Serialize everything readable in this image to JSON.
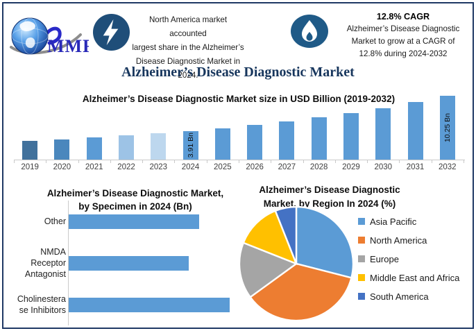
{
  "header": {
    "logo_text": "MMR",
    "highlight1": {
      "lines": [
        "North America market accounted",
        "largest share in the Alzheimer’s",
        "Disease Diagnostic Market in 2024."
      ]
    },
    "highlight2": {
      "title": "12.8% CAGR",
      "lines": [
        "Alzheimer’s Disease Diagnostic",
        "Market to grow at a CAGR of",
        "12.8% during 2024-2032"
      ]
    }
  },
  "main_title": "Alzheimer’s Disease Diagnostic Market",
  "colors": {
    "frame": "#1f3864",
    "title_navy": "#17365d",
    "primary_bar": "#5b9bd5",
    "bolt_circle": "#1f4e79",
    "flame_ellipse": "#1f5a87"
  },
  "chart_data": [
    {
      "id": "market_size",
      "type": "bar",
      "title": "Alzheimer’s Disease Diagnostic Market size in USD Billion (2019-2032)",
      "unit": "USD Billion",
      "categories": [
        "2019",
        "2020",
        "2021",
        "2022",
        "2023",
        "2024",
        "2025",
        "2026",
        "2027",
        "2028",
        "2029",
        "2030",
        "2031",
        "2032"
      ],
      "values": [
        2.14,
        2.41,
        2.72,
        3.07,
        3.47,
        3.91,
        4.41,
        4.97,
        5.61,
        6.33,
        7.14,
        8.05,
        9.08,
        10.25
      ],
      "data_labels": {
        "2024": "3.91 Bn",
        "2032": "10.25 Bn"
      },
      "bar_colors": [
        "#41719c",
        "#4a87bd",
        "#5b9bd5",
        "#9dc3e6",
        "#bdd7ee",
        "#5b9bd5",
        "#5b9bd5",
        "#5b9bd5",
        "#5b9bd5",
        "#5b9bd5",
        "#5b9bd5",
        "#5b9bd5",
        "#5b9bd5",
        "#5b9bd5"
      ],
      "grid": false,
      "legend": false
    },
    {
      "id": "by_specimen",
      "type": "bar",
      "orientation": "horizontal",
      "title": "Alzheimer’s Disease Diagnostic Market, by Specimen in 2024 (Bn)",
      "title_lines": [
        "Alzheimer’s Disease Diagnostic Market,",
        "by Specimen in 2024 (Bn)"
      ],
      "categories": [
        "Other",
        "NMDA Receptor Antagonist",
        "Cholinesterase Inhibitors"
      ],
      "categories_wrapped": [
        [
          "Other"
        ],
        [
          "NMDA",
          "Receptor",
          "Antagonist"
        ],
        [
          "Cholinestera",
          "se Inhibitors"
        ]
      ],
      "values": [
        1.24,
        1.14,
        1.53
      ],
      "unit": "USD Billion",
      "bar_color": "#5b9bd5",
      "grid": false,
      "legend": false
    },
    {
      "id": "by_region",
      "type": "pie",
      "title": "Alzheimer’s Disease Diagnostic Market, by Region In 2024 (%)",
      "title_lines": [
        "Alzheimer’s Disease Diagnostic",
        "Market, by Region In 2024 (%)"
      ],
      "labels": [
        "Asia Pacific",
        "North America",
        "Europe",
        "Middle East and Africa",
        "South America"
      ],
      "values": [
        29,
        36,
        16,
        13,
        6
      ],
      "colors": [
        "#5b9bd5",
        "#ed7d31",
        "#a5a5a5",
        "#ffc000",
        "#4472c4"
      ],
      "legend_position": "right",
      "start_angle_deg": 0
    }
  ]
}
